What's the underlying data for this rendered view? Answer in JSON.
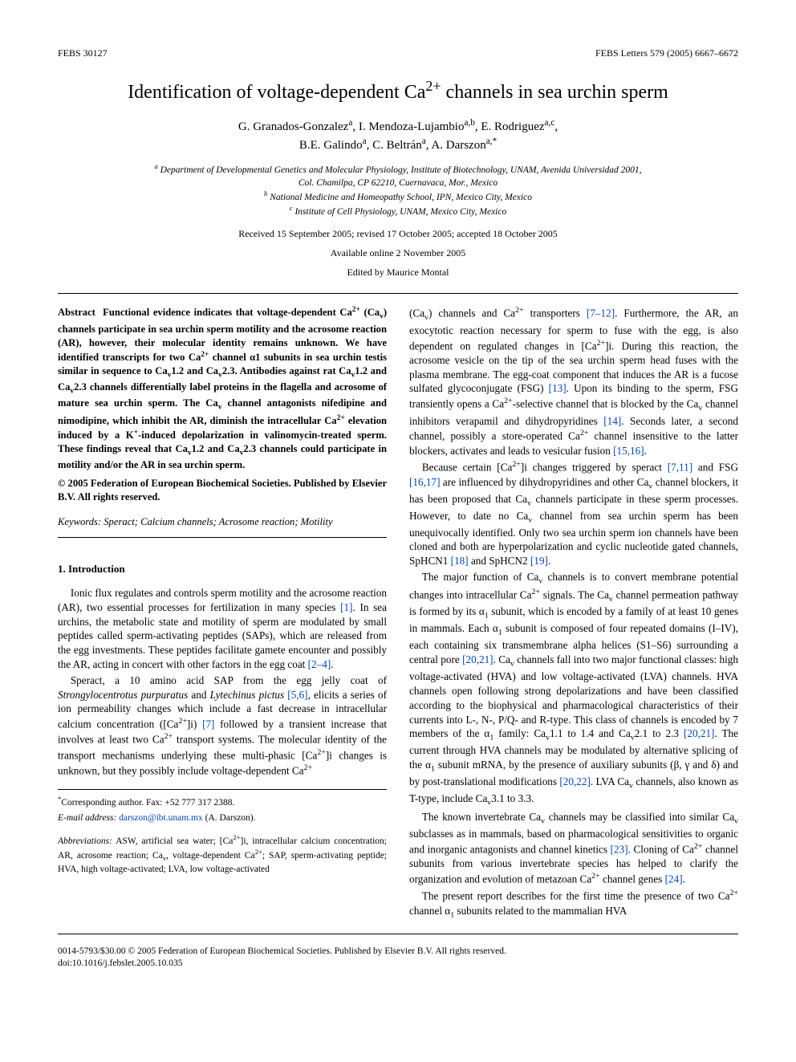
{
  "header": {
    "left": "FEBS 30127",
    "right": "FEBS Letters 579 (2005) 6667–6672"
  },
  "title_html": "Identification of voltage-dependent Ca<sup>2+</sup> channels in sea urchin sperm",
  "authors_html": "G. Granados-Gonzalez<sup>a</sup>, I. Mendoza-Lujambio<sup>a,b</sup>, E. Rodriguez<sup>a,c</sup>,<br>B.E. Galindo<sup>a</sup>, C. Beltrán<sup>a</sup>, A. Darszon<sup>a,*</sup>",
  "affiliations_html": "<sup>a</sup> Department of Developmental Genetics and Molecular Physiology, Institute of Biotechnology, UNAM, Avenida Universidad 2001,<br>Col. Chamilpa, CP 62210, Cuernavaca, Mor., Mexico<br><sup>b</sup> National Medicine and Homeopathy School, IPN, Mexico City, Mexico<br><sup>c</sup> Institute of Cell Physiology, UNAM, Mexico City, Mexico",
  "dates": "Received 15 September 2005; revised 17 October 2005; accepted 18 October 2005",
  "available": "Available online 2 November 2005",
  "editor": "Edited by Maurice Montal",
  "abstract": {
    "label": "Abstract",
    "body_html": "Functional evidence indicates that voltage-dependent Ca<sup>2+</sup> (Ca<sub>v</sub>) channels participate in sea urchin sperm motility and the acrosome reaction (AR), however, their molecular identity remains unknown. We have identified transcripts for two Ca<sup>2+</sup> channel α1 subunits in sea urchin testis similar in sequence to Ca<sub>v</sub>1.2 and Ca<sub>v</sub>2.3. Antibodies against rat Ca<sub>v</sub>1.2 and Ca<sub>v</sub>2.3 channels differentially label proteins in the flagella and acrosome of mature sea urchin sperm. The Ca<sub>v</sub> channel antagonists nifedipine and nimodipine, which inhibit the AR, diminish the intracellular Ca<sup>2+</sup> elevation induced by a K<sup>+</sup>-induced depolarization in valinomycin-treated sperm. These findings reveal that Ca<sub>v</sub>1.2 and Ca<sub>v</sub>2.3 channels could participate in motility and/or the AR in sea urchin sperm.",
    "copyright": "© 2005 Federation of European Biochemical Societies. Published by Elsevier B.V. All rights reserved."
  },
  "keywords_html": "<i>Keywords:</i> Speract; Calcium channels; Acrosome reaction; Motility",
  "sections": {
    "intro_heading": "1. Introduction"
  },
  "left_paras": [
    "Ionic flux regulates and controls sperm motility and the acrosome reaction (AR), two essential processes for fertilization in many species <span class=\"link\">[1]</span>. In sea urchins, the metabolic state and motility of sperm are modulated by small peptides called sperm-activating peptides (SAPs), which are released from the egg investments. These peptides facilitate gamete encounter and possibly the AR, acting in concert with other factors in the egg coat <span class=\"link\">[2–4]</span>.",
    "Speract, a 10 amino acid SAP from the egg jelly coat of <i>Strongylocentrotus purpuratus</i> and <i>Lytechinus pictus</i> <span class=\"link\">[5,6]</span>, elicits a series of ion permeability changes which include a fast decrease in intracellular calcium concentration ([Ca<sup>2+</sup>]i) <span class=\"link\">[7]</span> followed by a transient increase that involves at least two Ca<sup>2+</sup> transport systems. The molecular identity of the transport mechanisms underlying these multi-phasic [Ca<sup>2+</sup>]i changes is unknown, but they possibly include voltage-dependent Ca<sup>2+</sup>"
  ],
  "right_paras": [
    "(Ca<sub>v</sub>) channels and Ca<sup>2+</sup> transporters <span class=\"link\">[7–12]</span>. Furthermore, the AR, an exocytotic reaction necessary for sperm to fuse with the egg, is also dependent on regulated changes in [Ca<sup>2+</sup>]i. During this reaction, the acrosome vesicle on the tip of the sea urchin sperm head fuses with the plasma membrane. The egg-coat component that induces the AR is a fucose sulfated glycoconjugate (FSG) <span class=\"link\">[13]</span>. Upon its binding to the sperm, FSG transiently opens a Ca<sup>2+</sup>-selective channel that is blocked by the Ca<sub>v</sub> channel inhibitors verapamil and dihydropyridines <span class=\"link\">[14]</span>. Seconds later, a second channel, possibly a store-operated Ca<sup>2+</sup> channel insensitive to the latter blockers, activates and leads to vesicular fusion <span class=\"link\">[15,16]</span>.",
    "Because certain [Ca<sup>2+</sup>]i changes triggered by speract <span class=\"link\">[7,11]</span> and FSG <span class=\"link\">[16,17]</span> are influenced by dihydropyridines and other Ca<sub>v</sub> channel blockers, it has been proposed that Ca<sub>v</sub> channels participate in these sperm processes. However, to date no Ca<sub>v</sub> channel from sea urchin sperm has been unequivocally identified. Only two sea urchin sperm ion channels have been cloned and both are hyperpolarization and cyclic nucleotide gated channels, SpHCN1 <span class=\"link\">[18]</span> and SpHCN2 <span class=\"link\">[19]</span>.",
    "The major function of Ca<sub>v</sub> channels is to convert membrane potential changes into intracellular Ca<sup>2+</sup> signals. The Ca<sub>v</sub> channel permeation pathway is formed by its α<sub>1</sub> subunit, which is encoded by a family of at least 10 genes in mammals. Each α<sub>1</sub> subunit is composed of four repeated domains (I–IV), each containing six transmembrane alpha helices (S1–S6) surrounding a central pore <span class=\"link\">[20,21]</span>. Ca<sub>v</sub> channels fall into two major functional classes: high voltage-activated (HVA) and low voltage-activated (LVA) channels. HVA channels open following strong depolarizations and have been classified according to the biophysical and pharmacological characteristics of their currents into L-, N-, P/Q- and R-type. This class of channels is encoded by 7 members of the α<sub>1</sub> family: Ca<sub>v</sub>1.1 to 1.4 and Ca<sub>v</sub>2.1 to 2.3 <span class=\"link\">[20,21]</span>. The current through HVA channels may be modulated by alternative splicing of the α<sub>1</sub> subunit mRNA, by the presence of auxiliary subunits (β, γ and δ) and by post-translational modifications <span class=\"link\">[20,22]</span>. LVA Ca<sub>v</sub> channels, also known as T-type, include Ca<sub>v</sub>3.1 to 3.3.",
    "The known invertebrate Ca<sub>v</sub> channels may be classified into similar Ca<sub>v</sub> subclasses as in mammals, based on pharmacological sensitivities to organic and inorganic antagonists and channel kinetics <span class=\"link\">[23]</span>. Cloning of Ca<sup>2+</sup> channel subunits from various invertebrate species has helped to clarify the organization and evolution of metazoan Ca<sup>2+</sup> channel genes <span class=\"link\">[24]</span>.",
    "The present report describes for the first time the presence of two Ca<sup>2+</sup> channel α<sub>1</sub> subunits related to the mammalian HVA"
  ],
  "footnotes": {
    "corr_html": "<sup>*</sup>Corresponding author. Fax: +52 777 317 2388.",
    "email_label": "E-mail address:",
    "email_link": "darszon@ibt.unam.mx",
    "email_name": "(A. Darszon).",
    "abbr_html": "<i>Abbreviations:</i> ASW, artificial sea water; [Ca<sup>2+</sup>]i, intracellular calcium concentration; AR, acrosome reaction; Ca<sub>v</sub>, voltage-dependent Ca<sup>2+</sup>; SAP, sperm-activating peptide; HVA, high voltage-activated; LVA, low voltage-activated"
  },
  "bottom": {
    "line1": "0014-5793/$30.00 © 2005 Federation of European Biochemical Societies. Published by Elsevier B.V. All rights reserved.",
    "line2": "doi:10.1016/j.febslet.2005.10.035"
  },
  "colors": {
    "link": "#0645ad",
    "text": "#000000",
    "bg": "#ffffff"
  }
}
